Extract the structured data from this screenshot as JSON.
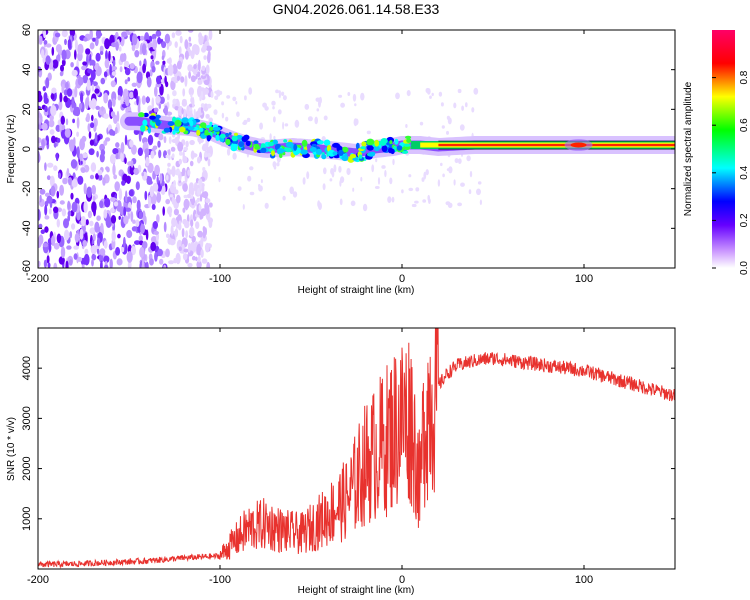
{
  "page_title": "GN04.2026.061.14.58.E33",
  "chart_data": [
    {
      "type": "heatmap",
      "title": "GN04.2026.061.14.58.E33",
      "xlabel": "Height of straight line (km)",
      "ylabel": "Frequency (Hz)",
      "xlim": [
        -200,
        150
      ],
      "ylim": [
        -60,
        60
      ],
      "x_ticks": [
        -200,
        -100,
        0,
        100
      ],
      "x_tick_labels": [
        "-200",
        "-100",
        "0",
        "100"
      ],
      "y_ticks": [
        -60,
        -40,
        -20,
        0,
        20,
        40,
        60
      ],
      "y_tick_labels": [
        "-60",
        "-40",
        "-20",
        "0",
        "20",
        "40",
        "60"
      ],
      "colorbar": {
        "label": "Normalized spectral amplitude",
        "range": [
          0,
          1
        ],
        "ticks": [
          0,
          0.2,
          0.4,
          0.6,
          0.8
        ],
        "tick_labels": [
          "0.0",
          "0.2",
          "0.4",
          "0.6",
          "0.8"
        ],
        "colors": [
          "#ffffff",
          "#cc99ff",
          "#6600ff",
          "#0000ff",
          "#00ffff",
          "#00ff00",
          "#ffff00",
          "#ff0000",
          "#ff0066"
        ]
      },
      "ridge": {
        "x": [
          -145,
          -130,
          -115,
          -105,
          -95,
          -85,
          -75,
          -60,
          -45,
          -35,
          -25,
          -15,
          -5,
          0,
          10,
          20,
          40,
          60,
          80,
          95,
          110,
          130,
          150
        ],
        "y": [
          14,
          12,
          11,
          9,
          5,
          2,
          0,
          1,
          0,
          -1,
          -2,
          0,
          1,
          2,
          2,
          1,
          2,
          2,
          2,
          2,
          2,
          2,
          2
        ]
      },
      "noise_region_x": [
        -200,
        -105
      ]
    },
    {
      "type": "line",
      "title": "",
      "xlabel": "Height of straight line (km)",
      "ylabel": "SNR (10 * v/v)",
      "xlim": [
        -200,
        150
      ],
      "ylim": [
        0,
        4800
      ],
      "x_ticks": [
        -200,
        -100,
        0,
        100
      ],
      "x_tick_labels": [
        "-200",
        "-100",
        "0",
        "100"
      ],
      "y_ticks": [
        1000,
        2000,
        3000,
        4000
      ],
      "y_tick_labels": [
        "1000",
        "2000",
        "3000",
        "4000"
      ],
      "series": [
        {
          "name": "SNR",
          "color": "#e8322e",
          "x": [
            -200,
            -180,
            -160,
            -140,
            -120,
            -100,
            -95,
            -85,
            -75,
            -65,
            -55,
            -45,
            -35,
            -30,
            -25,
            -20,
            -15,
            -10,
            -5,
            0,
            5,
            8,
            10,
            12,
            15,
            20,
            25,
            30,
            40,
            50,
            60,
            70,
            80,
            90,
            100,
            110,
            120,
            130,
            140,
            150
          ],
          "values": [
            90,
            100,
            130,
            160,
            220,
            260,
            450,
            800,
            900,
            750,
            700,
            950,
            1250,
            1400,
            1750,
            2100,
            2300,
            2500,
            2750,
            3000,
            3050,
            2200,
            1600,
            2900,
            3350,
            3650,
            3900,
            4050,
            4150,
            4200,
            4150,
            4100,
            4050,
            4000,
            3950,
            3850,
            3750,
            3650,
            3550,
            3450
          ]
        }
      ]
    }
  ]
}
